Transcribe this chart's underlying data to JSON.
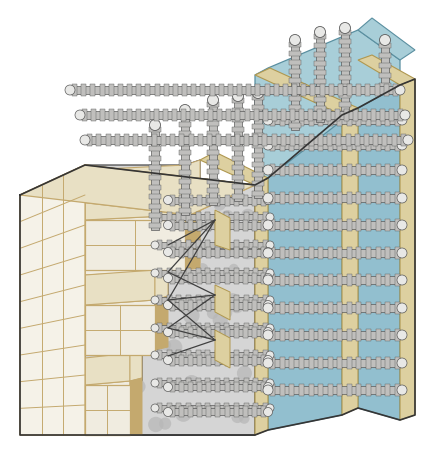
{
  "bg_color": "#ffffff",
  "concrete_color": "#d5d5d5",
  "concrete_dot_color": "#b8b8b8",
  "wall_face_light": "#f5f2e8",
  "wall_face_cream": "#f0ece0",
  "wall_edge_tan": "#c4a96e",
  "wall_top_color": "#e8e0c4",
  "rebar_body": "#c0bfbd",
  "rebar_edge": "#5a5a5a",
  "rebar_ridge": "#a8a8a8",
  "rebar_cap": "#e8e8e6",
  "blue_main": "#92bfcf",
  "blue_top": "#a8ced8",
  "blue_edge": "#5a8fa0",
  "yellow_form": "#ddd0a0",
  "yellow_edge": "#b09850",
  "tie_color": "#404040",
  "outline_color": "#353535",
  "shadow_color": "#c0bfb8"
}
